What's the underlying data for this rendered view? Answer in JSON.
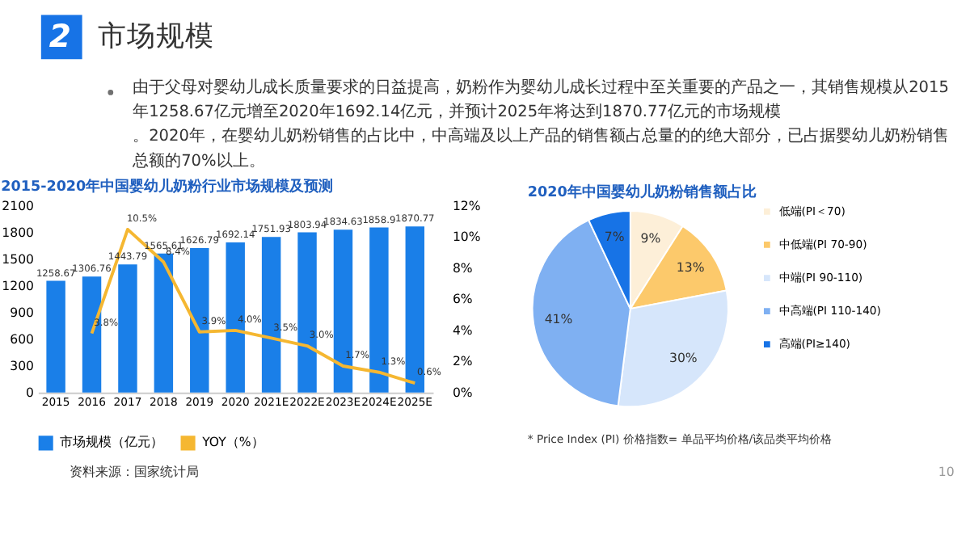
{
  "chart_data": [
    {
      "type": "bar",
      "title": "2015-2020年中国婴幼儿奶粉行业市场规模及预测",
      "annotations": [
        "2",
        "市场规模",
        "由于父母对婴幼儿成长质量要求的日益提高，奶粉作为婴幼儿成长过程中至关重要的产品之一，其销售规模从2015年1258.67亿元增至2020年1692.14亿元，并预计2025年将达到1870.77亿元的市场规模。2020年，在婴幼儿奶粉销售的占比中，中高端及以上产品的销售额占总量的的绝大部分，已占据婴幼儿奶粉销售总额的70%以上。",
        "资料来源：国家统计局",
        "10"
      ],
      "categories": [
        "2015",
        "2016",
        "2017",
        "2018",
        "2019",
        "2020",
        "2021E",
        "2022E",
        "2023E",
        "2024E",
        "2025E"
      ],
      "series": [
        {
          "name": "市场规模（亿元）",
          "type": "bar",
          "color": "#1a7fe8",
          "values": [
            1258.67,
            1306.76,
            1443.79,
            1565.61,
            1626.79,
            1692.14,
            1751.93,
            1803.94,
            1834.63,
            1858.9,
            1870.77
          ],
          "value_labels": [
            "1258.67",
            "1306.76",
            "1443.79",
            "1565.61",
            "1626.79",
            "1692.14",
            "1751.93",
            "1803.94",
            "1834.63",
            "1858.9",
            "1870.77"
          ]
        },
        {
          "name": "YOY（%）",
          "type": "line",
          "axis": "y2",
          "color": "#f5b731",
          "values": [
            null,
            3.8,
            10.5,
            8.4,
            3.9,
            4.0,
            3.5,
            3.0,
            1.7,
            1.3,
            0.6
          ],
          "value_labels": [
            null,
            "3.8%",
            "10.5%",
            "8.4%",
            "3.9%",
            "4.0%",
            "3.5%",
            "3.0%",
            "1.7%",
            "1.3%",
            "0.6%"
          ]
        }
      ],
      "ylim": [
        0,
        2100
      ],
      "yticks": [
        0,
        300,
        600,
        900,
        1200,
        1500,
        1800,
        2100
      ],
      "y2lim": [
        0,
        12
      ],
      "y2ticks": [
        {
          "value": 0,
          "label": "0%"
        },
        {
          "value": 2,
          "label": "2%"
        },
        {
          "value": 4,
          "label": "4%"
        },
        {
          "value": 6,
          "label": "6%"
        },
        {
          "value": 8,
          "label": "8%"
        },
        {
          "value": 10,
          "label": "10%"
        },
        {
          "value": 12,
          "label": "12%"
        }
      ],
      "legend": "bottom",
      "grid": false
    },
    {
      "type": "pie",
      "title": "2020年中国婴幼儿奶粉销售额占比",
      "categories": [
        "低端(PI＜70)",
        "中低端(PI 70-90)",
        "中端(PI 90-110)",
        "中高端(PI 110-140)",
        "高端(PI≥140)"
      ],
      "values": [
        9,
        13,
        30,
        41,
        7
      ],
      "value_labels": [
        "9%",
        "13%",
        "30%",
        "41%",
        "7%"
      ],
      "colors": [
        "#fdefd8",
        "#fcc96b",
        "#d6e6fb",
        "#7fb0f2",
        "#1773e6"
      ],
      "annotations": [
        "* Price Index (PI) 价格指数= 单品平均价格/该品类平均价格"
      ],
      "legend": "right"
    }
  ]
}
